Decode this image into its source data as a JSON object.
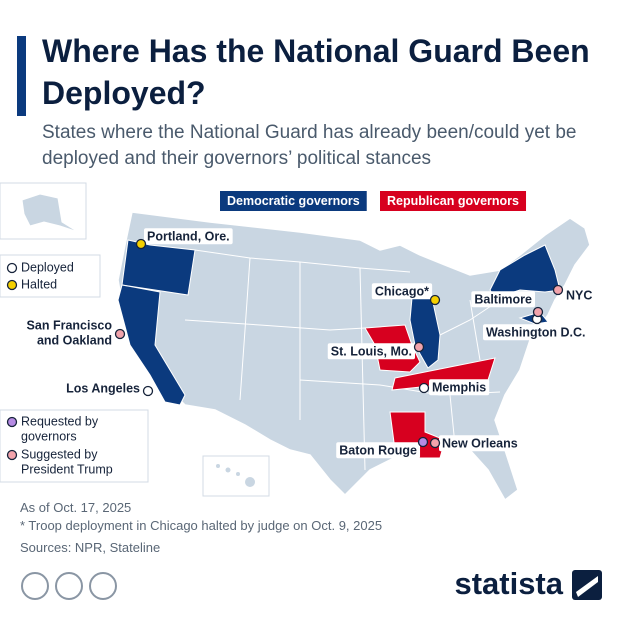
{
  "title": "Where Has the National Guard Been Deployed?",
  "subtitle": "States where the National Guard has already been/could yet be deployed and their governors’ political stances",
  "party_legend": [
    {
      "label": "Democratic governors",
      "color": "#0b3a7e"
    },
    {
      "label": "Republican governors",
      "color": "#d7001f"
    }
  ],
  "status_legend": [
    {
      "label_lines": [
        "Deployed"
      ],
      "color": "#ffffff",
      "cities": [
        {
          "label_lines": [
            "Los Angeles"
          ]
        },
        {
          "label_lines": [
            "Memphis"
          ]
        },
        {
          "label_lines": [
            "Washington D.C."
          ]
        }
      ]
    },
    {
      "label_lines": [
        "Halted"
      ],
      "color": "#f5d000",
      "cities": [
        {
          "label_lines": [
            "Portland, Ore."
          ]
        },
        {
          "label_lines": [
            "Chicago*"
          ]
        }
      ]
    },
    {
      "label_lines": [
        "Requested by",
        "governors"
      ],
      "color": "#b68be3",
      "cities": [
        {
          "label_lines": [
            "Baton Rouge"
          ]
        }
      ]
    },
    {
      "label_lines": [
        "Suggested by",
        "President Trump"
      ],
      "color": "#f2a3ab",
      "cities": [
        {
          "label_lines": [
            "San Francisco",
            "and Oakland"
          ]
        },
        {
          "label_lines": [
            "St. Louis, Mo."
          ]
        },
        {
          "label_lines": [
            "Baltimore"
          ]
        },
        {
          "label_lines": [
            "NYC"
          ]
        },
        {
          "label_lines": [
            "New Orleans"
          ]
        }
      ]
    }
  ],
  "notes": [
    "As of Oct. 17, 2025",
    "* Troop deployment in Chicago halted by judge on Oct. 9, 2025",
    "Sources: NPR, Stateline"
  ],
  "brand": "statista"
}
